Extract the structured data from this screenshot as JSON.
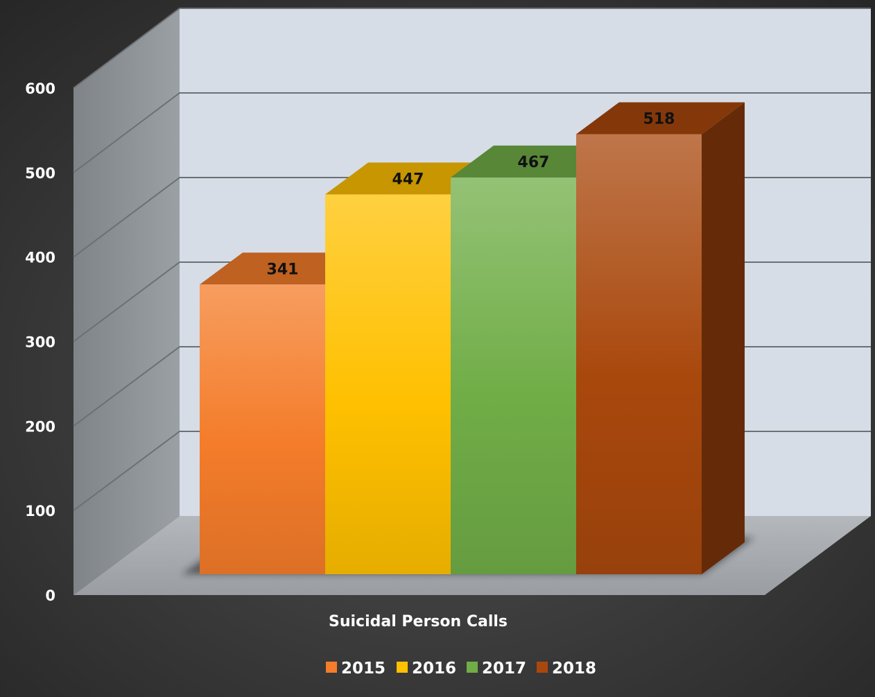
{
  "chart_data": {
    "type": "bar",
    "title": "",
    "xlabel": "",
    "ylabel": "",
    "categories": [
      "Suicidal Person Calls"
    ],
    "series": [
      {
        "name": "2015",
        "values": [
          341
        ],
        "color": "#f47c2a"
      },
      {
        "name": "2016",
        "values": [
          447
        ],
        "color": "#ffc000"
      },
      {
        "name": "2017",
        "values": [
          467
        ],
        "color": "#70ad47"
      },
      {
        "name": "2018",
        "values": [
          518
        ],
        "color": "#a9480d"
      }
    ],
    "ylim": [
      0,
      600
    ],
    "y_ticks": [
      "0",
      "100",
      "200",
      "300",
      "400",
      "500",
      "600"
    ],
    "grid": true,
    "legend_position": "bottom",
    "style": "3d-clustered-column"
  }
}
